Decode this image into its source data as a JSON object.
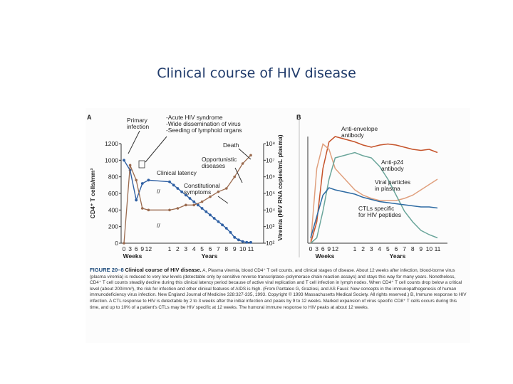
{
  "slide_title": "Clinical course of HIV disease",
  "colors": {
    "title": "#1f3a6a",
    "cd4": "#2e5fa3",
    "viremia": "#9a6a4e",
    "antibody": "#c5532a",
    "cd8": "#e0a07e",
    "anti_p24": "#6aa59a",
    "viral_b": "#2e6ba3"
  },
  "figure": {
    "caption_label": "FIGURE 20–8",
    "caption_title": "Clinical course of HIV disease.",
    "caption_text": "A, Plasma viremia, blood CD4⁺ T cell counts, and clinical stages of disease. About 12 weeks after infection, blood-borne virus (plasma viremia) is reduced to very low levels (detectable only by sensitive reverse transcriptase–polymerase chain reaction assays) and stays this way for many years. Nonetheless, CD4⁺ T cell counts steadily decline during this clinical latency period because of active viral replication and T cell infection in lymph nodes. When CD4⁺ T cell counts drop below a critical level (about 200/mm³), the risk for infection and other clinical features of AIDS is high. (From Pantaleo G, Graziosi, and AS Fauci: New concepts in the immunopathogenesis of human immunodeficiency virus infection. New England Journal of Medicine 328:327-335, 1993. Copyright © 1993 Massachusetts Medical Society. All rights reserved.) B, Immune response to HIV infection. A CTL response to HIV is detectable by 2 to 3 weeks after the initial infection and peaks by 9 to 12 weeks. Marked expansion of virus specific CD8⁺ T cells occurs during this time, and up to 10% of a patient's CTLs may be HIV specific at 12 weeks. The humoral immune response to HIV peaks at about 12 weeks."
  },
  "chart_data": [
    {
      "type": "line",
      "panel": "A",
      "ylabel": "CD4⁺ T cells/mm³",
      "y2label": "Viremia (HIV RNA copies/mL plasma)",
      "xlabel_weeks": "Weeks",
      "xlabel_years": "Years",
      "ylim": [
        0,
        1200
      ],
      "y2_log_ticks": [
        "10⁸",
        "10⁷",
        "10⁶",
        "10⁵",
        "10⁴",
        "10³",
        "10²"
      ],
      "yticks": [
        0,
        200,
        400,
        600,
        800,
        1000,
        1200
      ],
      "x_week_ticks": [
        "0",
        "3",
        "6",
        "9",
        "12"
      ],
      "x_year_ticks": [
        "1",
        "2",
        "3",
        "4",
        "5",
        "6",
        "7",
        "8",
        "9",
        "10",
        "11"
      ],
      "annotations": {
        "panel_letter": "A",
        "primary": [
          "Primary",
          "infection"
        ],
        "acute": [
          "-Acute HIV syndrome",
          "-Wide dissemination of virus",
          "-Seeding of lymphoid organs"
        ],
        "death": "Death",
        "opportunistic": [
          "Opportunistic",
          "diseases"
        ],
        "latency": "Clinical latency",
        "constitutional": [
          "Constitutional",
          "symptoms"
        ]
      },
      "series": [
        {
          "key": "cd4",
          "x": [
            0,
            3,
            6,
            9,
            12,
            1,
            1.5,
            2,
            2.5,
            3,
            3.5,
            4,
            4.5,
            5,
            5.5,
            6,
            6.5,
            7,
            7.5,
            8,
            8.5,
            9,
            9.5,
            10,
            10.5,
            11
          ],
          "unit": [
            "w",
            "w",
            "w",
            "w",
            "w",
            "y",
            "y",
            "y",
            "y",
            "y",
            "y",
            "y",
            "y",
            "y",
            "y",
            "y",
            "y",
            "y",
            "y",
            "y",
            "y",
            "y",
            "y",
            "y",
            "y",
            "y"
          ],
          "values": [
            1000,
            880,
            520,
            720,
            760,
            740,
            700,
            660,
            620,
            580,
            540,
            500,
            460,
            420,
            380,
            340,
            300,
            260,
            220,
            180,
            130,
            70,
            40,
            20,
            10,
            10
          ]
        },
        {
          "key": "viremia",
          "x": [
            0,
            3,
            6,
            9,
            12,
            1,
            2,
            3,
            4,
            5,
            6,
            7,
            8,
            9,
            10,
            11
          ],
          "unit": [
            "w",
            "w",
            "w",
            "w",
            "w",
            "y",
            "y",
            "y",
            "y",
            "y",
            "y",
            "y",
            "y",
            "y",
            "y",
            "y"
          ],
          "log10_values": [
            2,
            6.7,
            5.8,
            4.1,
            4.0,
            4.0,
            4.1,
            4.3,
            4.3,
            4.5,
            4.8,
            5.1,
            5.3,
            6.0,
            6.8,
            7.3
          ]
        }
      ]
    },
    {
      "type": "line",
      "panel": "B",
      "xlabel_weeks": "Weeks",
      "xlabel_years": "Years",
      "x_week_ticks": [
        "0",
        "3",
        "6",
        "9",
        "12"
      ],
      "x_year_ticks": [
        "1",
        "2",
        "3",
        "4",
        "5",
        "6",
        "7",
        "8",
        "9",
        "10",
        "11"
      ],
      "annotations": {
        "panel_letter": "B",
        "anti_env": [
          "Anti-envelope",
          "antibody"
        ],
        "anti_p24": [
          "Anti-p24",
          "antibody"
        ],
        "viral": [
          "Viral particles",
          "in plasma"
        ],
        "ctl": [
          "CTLs specific",
          "for HIV peptides"
        ]
      },
      "series": [
        {
          "key": "anti_envelope",
          "relative_values": [
            0,
            0.2,
            0.7,
            0.95,
            1.0,
            0.95,
            0.92,
            0.9,
            0.92,
            0.93,
            0.92,
            0.9,
            0.88,
            0.87,
            0.88,
            0.85
          ]
        },
        {
          "key": "cd8_ctl",
          "relative_values": [
            0,
            0.7,
            0.93,
            0.88,
            0.7,
            0.5,
            0.45,
            0.42,
            0.4,
            0.4,
            0.4,
            0.42,
            0.45,
            0.5,
            0.55,
            0.6
          ]
        },
        {
          "key": "anti_p24",
          "relative_values": [
            0,
            0.05,
            0.3,
            0.6,
            0.8,
            0.85,
            0.82,
            0.8,
            0.72,
            0.6,
            0.45,
            0.3,
            0.2,
            0.12,
            0.08,
            0.05
          ]
        },
        {
          "key": "viral_particles",
          "relative_values": [
            0.05,
            0.25,
            0.45,
            0.52,
            0.5,
            0.46,
            0.43,
            0.41,
            0.39,
            0.38,
            0.37,
            0.36,
            0.35,
            0.34,
            0.34,
            0.33
          ]
        }
      ]
    }
  ]
}
